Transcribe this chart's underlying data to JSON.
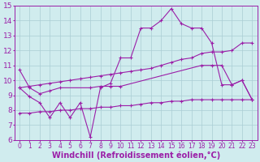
{
  "background_color": "#d0ecee",
  "grid_color": "#aacdd4",
  "line_color": "#9b1fa8",
  "xlabel": "Windchill (Refroidissement éolien,°C)",
  "xlabel_fontsize": 7.0,
  "ytick_fontsize": 6.5,
  "xtick_fontsize": 5.5,
  "xlim": [
    -0.5,
    23.5
  ],
  "ylim": [
    6,
    15
  ],
  "yticks": [
    6,
    7,
    8,
    9,
    10,
    11,
    12,
    13,
    14,
    15
  ],
  "xticks": [
    0,
    1,
    2,
    3,
    4,
    5,
    6,
    7,
    8,
    9,
    10,
    11,
    12,
    13,
    14,
    15,
    16,
    17,
    18,
    19,
    20,
    21,
    22,
    23
  ],
  "line_zigzag_x": [
    0,
    1,
    2,
    3,
    4,
    5,
    6,
    7,
    8,
    9,
    10,
    11,
    12,
    13,
    14,
    15,
    16,
    17,
    18,
    19,
    20,
    21,
    22,
    23
  ],
  "line_zigzag_y": [
    9.5,
    8.9,
    8.5,
    7.5,
    8.5,
    7.5,
    8.5,
    6.2,
    9.5,
    9.8,
    11.5,
    11.5,
    13.5,
    13.5,
    14.0,
    14.8,
    13.8,
    13.5,
    13.5,
    12.5,
    9.7,
    9.7,
    10.0,
    8.7
  ],
  "line_upper_diag_x": [
    0,
    1,
    2,
    3,
    4,
    5,
    6,
    7,
    8,
    9,
    10,
    11,
    12,
    13,
    14,
    15,
    16,
    17,
    18,
    19,
    20,
    21,
    22,
    23
  ],
  "line_upper_diag_y": [
    9.5,
    9.6,
    9.7,
    9.8,
    9.9,
    10.0,
    10.1,
    10.2,
    10.3,
    10.4,
    10.5,
    10.6,
    10.7,
    10.8,
    11.0,
    11.2,
    11.4,
    11.5,
    11.8,
    11.9,
    11.9,
    12.0,
    12.5,
    12.5
  ],
  "line_lower_diag_x": [
    0,
    1,
    2,
    3,
    4,
    5,
    6,
    7,
    8,
    9,
    10,
    11,
    12,
    13,
    14,
    15,
    16,
    17,
    18,
    19,
    20,
    21,
    22,
    23
  ],
  "line_lower_diag_y": [
    7.8,
    7.8,
    7.9,
    7.9,
    8.0,
    8.0,
    8.1,
    8.1,
    8.2,
    8.2,
    8.3,
    8.3,
    8.4,
    8.5,
    8.5,
    8.6,
    8.6,
    8.7,
    8.7,
    8.7,
    8.7,
    8.7,
    8.7,
    8.7
  ],
  "line_drop_x": [
    0,
    1,
    2,
    3,
    4,
    7,
    8,
    9,
    10,
    18,
    19,
    20,
    21,
    22,
    23
  ],
  "line_drop_y": [
    10.7,
    9.5,
    9.1,
    9.3,
    9.5,
    9.5,
    9.6,
    9.6,
    9.6,
    11.0,
    11.0,
    11.0,
    9.7,
    10.0,
    8.7
  ]
}
